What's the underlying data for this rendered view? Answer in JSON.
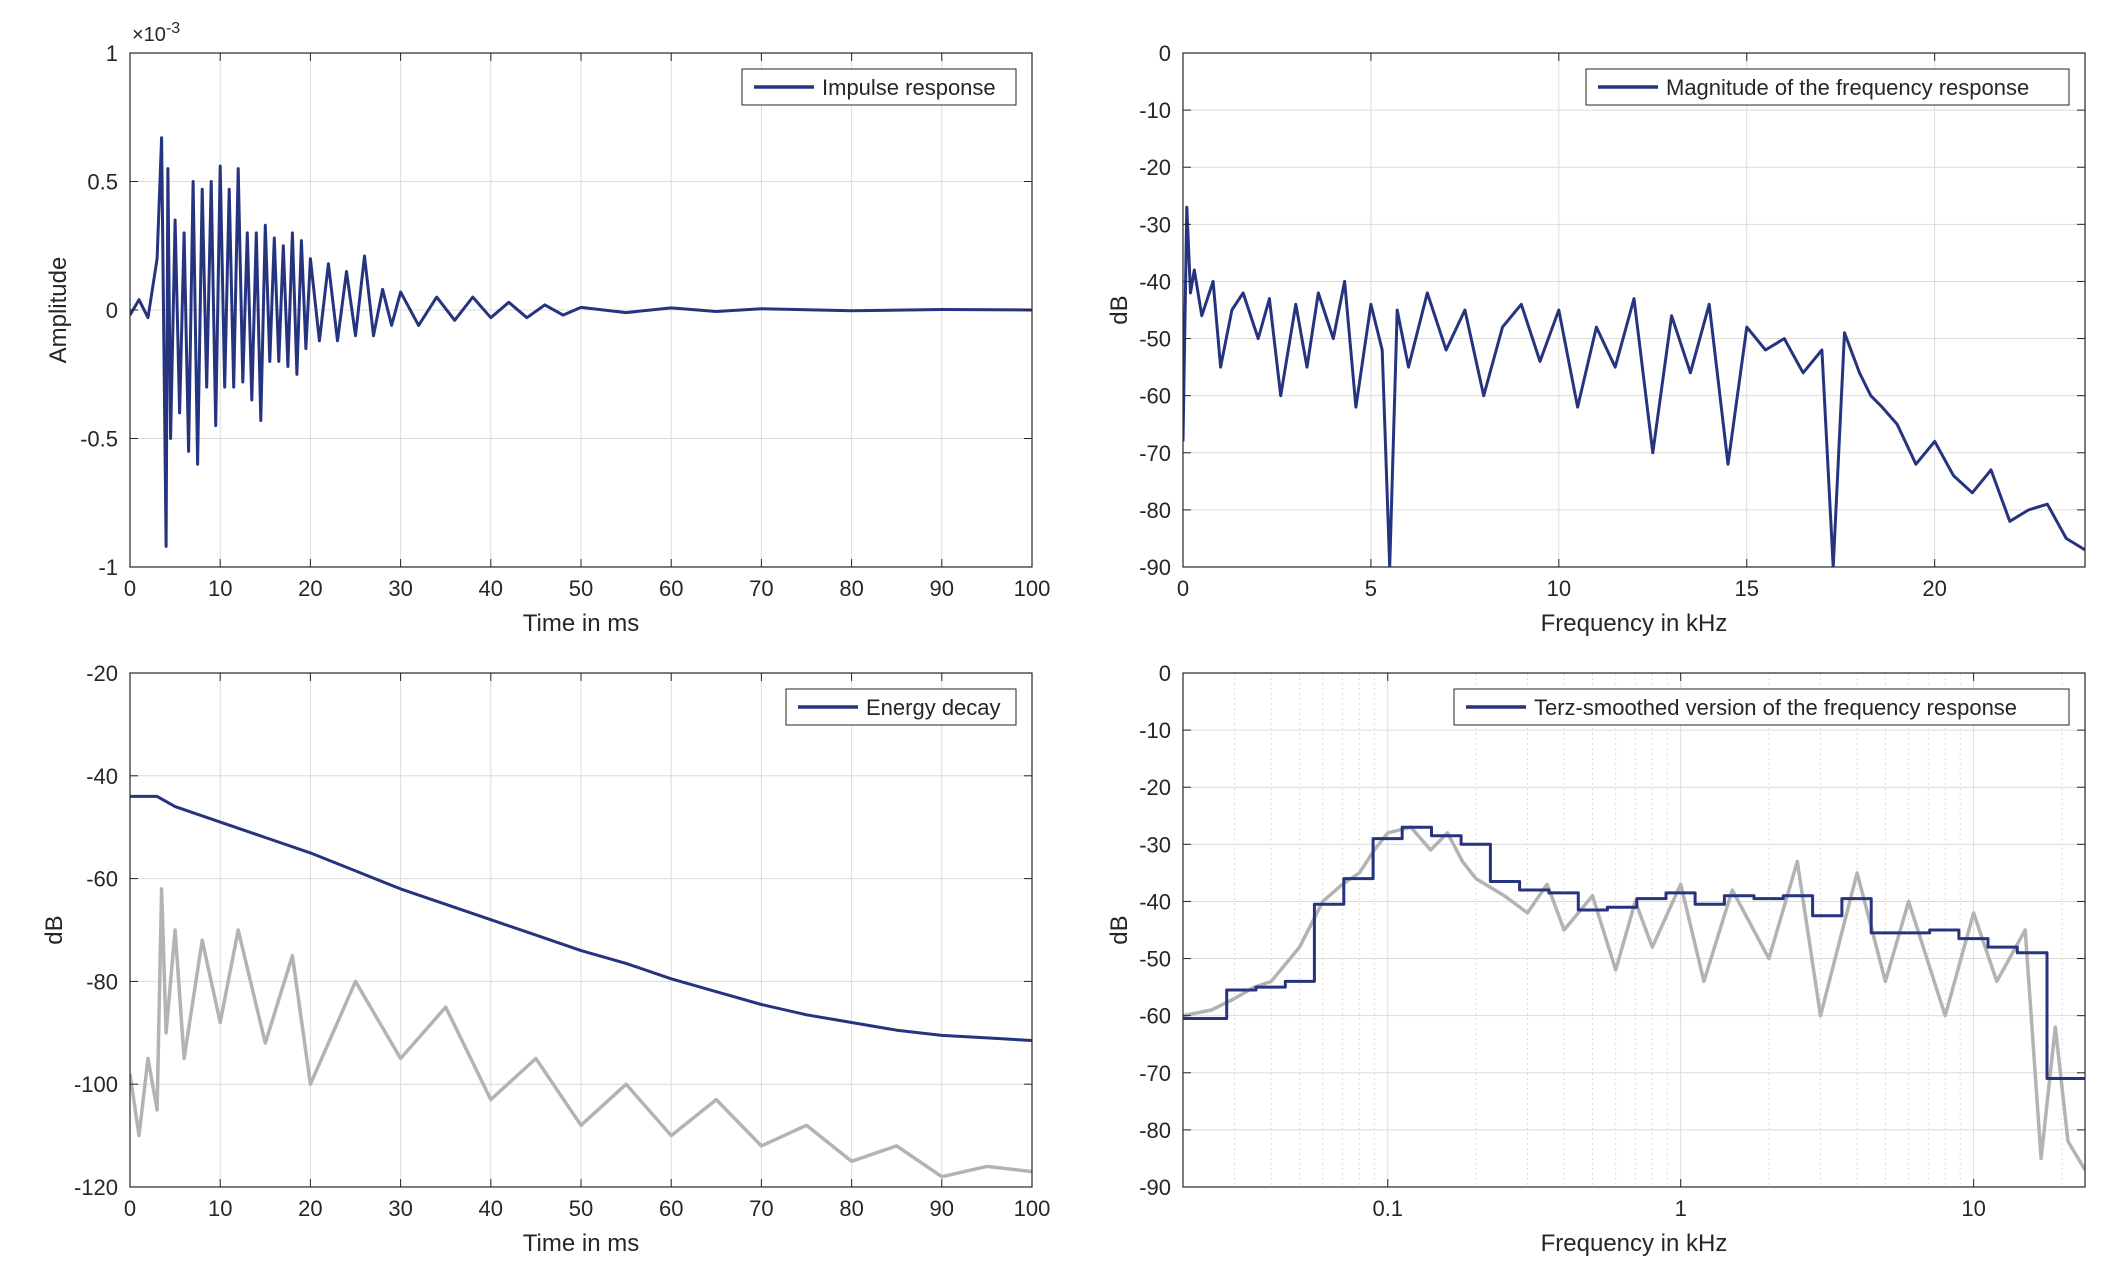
{
  "colors": {
    "series_blue": "#26347f",
    "series_gray": "#b3b3b3",
    "grid": "#dcdcdc",
    "axis": "#262626",
    "background": "#ffffff"
  },
  "chart_data": [
    {
      "id": "impulse",
      "type": "line",
      "title": "",
      "xlabel": "Time in ms",
      "ylabel": "Amplitude",
      "exponent_label": "×10",
      "exponent_power": "-3",
      "xlim": [
        0,
        100
      ],
      "ylim": [
        -1,
        1
      ],
      "xscale": "linear",
      "xticks": [
        0,
        10,
        20,
        30,
        40,
        50,
        60,
        70,
        80,
        90,
        100
      ],
      "xtick_labels": [
        "0",
        "10",
        "20",
        "30",
        "40",
        "50",
        "60",
        "70",
        "80",
        "90",
        "100"
      ],
      "yticks": [
        -1,
        -0.5,
        0,
        0.5,
        1
      ],
      "ytick_labels": [
        "-1",
        "-0.5",
        "0",
        "0.5",
        "1"
      ],
      "grid": true,
      "legend": "top-right",
      "series": [
        {
          "name": "Impulse response",
          "color": "#26347f",
          "x": [
            0,
            1,
            2,
            3,
            3.5,
            4,
            4.2,
            4.5,
            5,
            5.5,
            6,
            6.5,
            7,
            7.5,
            8,
            8.5,
            9,
            9.5,
            10,
            10.5,
            11,
            11.5,
            12,
            12.5,
            13,
            13.5,
            14,
            14.5,
            15,
            15.5,
            16,
            16.5,
            17,
            17.5,
            18,
            18.5,
            19,
            19.5,
            20,
            21,
            22,
            23,
            24,
            25,
            26,
            27,
            28,
            29,
            30,
            32,
            34,
            36,
            38,
            40,
            42,
            44,
            46,
            48,
            50,
            55,
            60,
            65,
            70,
            80,
            90,
            100
          ],
          "y": [
            -0.02,
            0.04,
            -0.03,
            0.2,
            0.67,
            -0.92,
            0.55,
            -0.5,
            0.35,
            -0.4,
            0.3,
            -0.55,
            0.5,
            -0.6,
            0.47,
            -0.3,
            0.5,
            -0.45,
            0.56,
            -0.3,
            0.47,
            -0.3,
            0.55,
            -0.28,
            0.3,
            -0.35,
            0.3,
            -0.43,
            0.33,
            -0.2,
            0.28,
            -0.2,
            0.25,
            -0.22,
            0.3,
            -0.25,
            0.27,
            -0.15,
            0.2,
            -0.12,
            0.18,
            -0.12,
            0.15,
            -0.1,
            0.21,
            -0.1,
            0.08,
            -0.06,
            0.07,
            -0.06,
            0.05,
            -0.04,
            0.05,
            -0.03,
            0.03,
            -0.03,
            0.02,
            -0.02,
            0.01,
            -0.01,
            0.008,
            -0.006,
            0.005,
            -0.003,
            0.002,
            0.0
          ]
        }
      ]
    },
    {
      "id": "magnitude",
      "type": "line",
      "title": "",
      "xlabel": "Frequency in kHz",
      "ylabel": "dB",
      "xlim": [
        0,
        24
      ],
      "ylim": [
        -90,
        0
      ],
      "xscale": "linear",
      "xticks": [
        0,
        5,
        10,
        15,
        20
      ],
      "xtick_labels": [
        "0",
        "5",
        "10",
        "15",
        "20"
      ],
      "yticks": [
        -90,
        -80,
        -70,
        -60,
        -50,
        -40,
        -30,
        -20,
        -10,
        0
      ],
      "ytick_labels": [
        "-90",
        "-80",
        "-70",
        "-60",
        "-50",
        "-40",
        "-30",
        "-20",
        "-10",
        "0"
      ],
      "grid": true,
      "legend": "top-right",
      "series": [
        {
          "name": "Magnitude of the frequency response",
          "color": "#26347f",
          "x": [
            0,
            0.1,
            0.2,
            0.3,
            0.5,
            0.8,
            1,
            1.3,
            1.6,
            2,
            2.3,
            2.6,
            3,
            3.3,
            3.6,
            4,
            4.3,
            4.6,
            5,
            5.3,
            5.5,
            5.7,
            6,
            6.5,
            7,
            7.5,
            8,
            8.5,
            9,
            9.5,
            10,
            10.5,
            11,
            11.5,
            12,
            12.5,
            13,
            13.5,
            14,
            14.5,
            15,
            15.5,
            16,
            16.5,
            17,
            17.3,
            17.6,
            18,
            18.3,
            18.6,
            19,
            19.5,
            20,
            20.5,
            21,
            21.5,
            22,
            22.5,
            23,
            23.5,
            24
          ],
          "y": [
            -68,
            -27,
            -42,
            -38,
            -46,
            -40,
            -55,
            -45,
            -42,
            -50,
            -43,
            -60,
            -44,
            -55,
            -42,
            -50,
            -40,
            -62,
            -44,
            -52,
            -90,
            -45,
            -55,
            -42,
            -52,
            -45,
            -60,
            -48,
            -44,
            -54,
            -45,
            -62,
            -48,
            -55,
            -43,
            -70,
            -46,
            -56,
            -44,
            -72,
            -48,
            -52,
            -50,
            -56,
            -52,
            -90,
            -49,
            -56,
            -60,
            -62,
            -65,
            -72,
            -68,
            -74,
            -77,
            -73,
            -82,
            -80,
            -79,
            -85,
            -87
          ]
        }
      ]
    },
    {
      "id": "energy",
      "type": "line",
      "title": "",
      "xlabel": "Time in ms",
      "ylabel": "dB",
      "xlim": [
        0,
        100
      ],
      "ylim": [
        -120,
        -20
      ],
      "xscale": "linear",
      "xticks": [
        0,
        10,
        20,
        30,
        40,
        50,
        60,
        70,
        80,
        90,
        100
      ],
      "xtick_labels": [
        "0",
        "10",
        "20",
        "30",
        "40",
        "50",
        "60",
        "70",
        "80",
        "90",
        "100"
      ],
      "yticks": [
        -120,
        -100,
        -80,
        -60,
        -40,
        -20
      ],
      "ytick_labels": [
        "-120",
        "-100",
        "-80",
        "-60",
        "-40",
        "-20"
      ],
      "grid": true,
      "legend": "top-right",
      "series": [
        {
          "name": "",
          "color": "#b3b3b3",
          "x": [
            0,
            1,
            2,
            3,
            3.5,
            4,
            5,
            6,
            8,
            10,
            12,
            15,
            18,
            20,
            25,
            30,
            35,
            40,
            45,
            50,
            55,
            60,
            65,
            70,
            75,
            80,
            85,
            90,
            95,
            100
          ],
          "y": [
            -98,
            -110,
            -95,
            -105,
            -62,
            -90,
            -70,
            -95,
            -72,
            -88,
            -70,
            -92,
            -75,
            -100,
            -80,
            -95,
            -85,
            -103,
            -95,
            -108,
            -100,
            -110,
            -103,
            -112,
            -108,
            -115,
            -112,
            -118,
            -116,
            -117
          ]
        },
        {
          "name": "Energy decay",
          "color": "#26347f",
          "x": [
            0,
            3,
            5,
            10,
            15,
            20,
            25,
            30,
            35,
            40,
            45,
            50,
            55,
            60,
            65,
            70,
            75,
            80,
            85,
            90,
            95,
            100
          ],
          "y": [
            -44,
            -44,
            -46,
            -49,
            -52,
            -55,
            -58.5,
            -62,
            -65,
            -68,
            -71,
            -74,
            -76.5,
            -79.5,
            -82,
            -84.5,
            -86.5,
            -88,
            -89.5,
            -90.5,
            -91,
            -91.5
          ]
        }
      ]
    },
    {
      "id": "terz",
      "type": "line",
      "title": "",
      "xlabel": "Frequency in kHz",
      "ylabel": "dB",
      "xlim": [
        0.02,
        24
      ],
      "ylim": [
        -90,
        0
      ],
      "xscale": "log",
      "xticks": [
        0.1,
        1,
        10
      ],
      "xtick_labels": [
        "0.1",
        "1",
        "10"
      ],
      "yticks": [
        -90,
        -80,
        -70,
        -60,
        -50,
        -40,
        -30,
        -20,
        -10,
        0
      ],
      "ytick_labels": [
        "-90",
        "-80",
        "-70",
        "-60",
        "-50",
        "-40",
        "-30",
        "-20",
        "-10",
        "0"
      ],
      "grid": true,
      "legend": "top-right",
      "series": [
        {
          "name": "",
          "color": "#b3b3b3",
          "x": [
            0.02,
            0.025,
            0.03,
            0.035,
            0.04,
            0.05,
            0.06,
            0.07,
            0.08,
            0.09,
            0.1,
            0.12,
            0.14,
            0.16,
            0.18,
            0.2,
            0.25,
            0.3,
            0.35,
            0.4,
            0.5,
            0.6,
            0.7,
            0.8,
            1,
            1.2,
            1.5,
            2,
            2.5,
            3,
            4,
            5,
            6,
            8,
            10,
            12,
            15,
            17,
            19,
            21,
            24
          ],
          "y": [
            -60,
            -59,
            -57,
            -55,
            -54,
            -48,
            -40,
            -37,
            -35,
            -31,
            -28,
            -27,
            -31,
            -28,
            -33,
            -36,
            -39,
            -42,
            -37,
            -45,
            -39,
            -52,
            -40,
            -48,
            -37,
            -54,
            -38,
            -50,
            -33,
            -60,
            -35,
            -54,
            -40,
            -60,
            -42,
            -54,
            -45,
            -85,
            -62,
            -82,
            -87
          ]
        },
        {
          "name": "Terz-smoothed version of the frequency response",
          "color": "#26347f",
          "x": [
            0.02,
            0.0282,
            0.0282,
            0.0355,
            0.0355,
            0.0447,
            0.0447,
            0.0562,
            0.0562,
            0.0708,
            0.0708,
            0.0891,
            0.0891,
            0.112,
            0.112,
            0.141,
            0.141,
            0.178,
            0.178,
            0.224,
            0.224,
            0.282,
            0.282,
            0.355,
            0.355,
            0.447,
            0.447,
            0.562,
            0.562,
            0.708,
            0.708,
            0.891,
            0.891,
            1.12,
            1.12,
            1.41,
            1.41,
            1.78,
            1.78,
            2.24,
            2.24,
            2.82,
            2.82,
            3.55,
            3.55,
            4.47,
            4.47,
            5.62,
            5.62,
            7.08,
            7.08,
            8.91,
            8.91,
            11.2,
            11.2,
            14.1,
            14.1,
            17.8,
            17.8,
            24
          ],
          "y": [
            -60.5,
            -60.5,
            -55.5,
            -55.5,
            -55,
            -55,
            -54,
            -54,
            -40.5,
            -40.5,
            -36,
            -36,
            -29,
            -29,
            -27,
            -27,
            -28.5,
            -28.5,
            -30,
            -30,
            -36.5,
            -36.5,
            -38,
            -38,
            -38.5,
            -38.5,
            -41.5,
            -41.5,
            -41,
            -41,
            -39.5,
            -39.5,
            -38.5,
            -38.5,
            -40.5,
            -40.5,
            -39,
            -39,
            -39.5,
            -39.5,
            -39,
            -39,
            -42.5,
            -42.5,
            -39.5,
            -39.5,
            -45.5,
            -45.5,
            -45.5,
            -45.5,
            -45,
            -45,
            -46.5,
            -46.5,
            -48,
            -48,
            -49,
            -49,
            -71,
            -71
          ]
        }
      ]
    }
  ]
}
